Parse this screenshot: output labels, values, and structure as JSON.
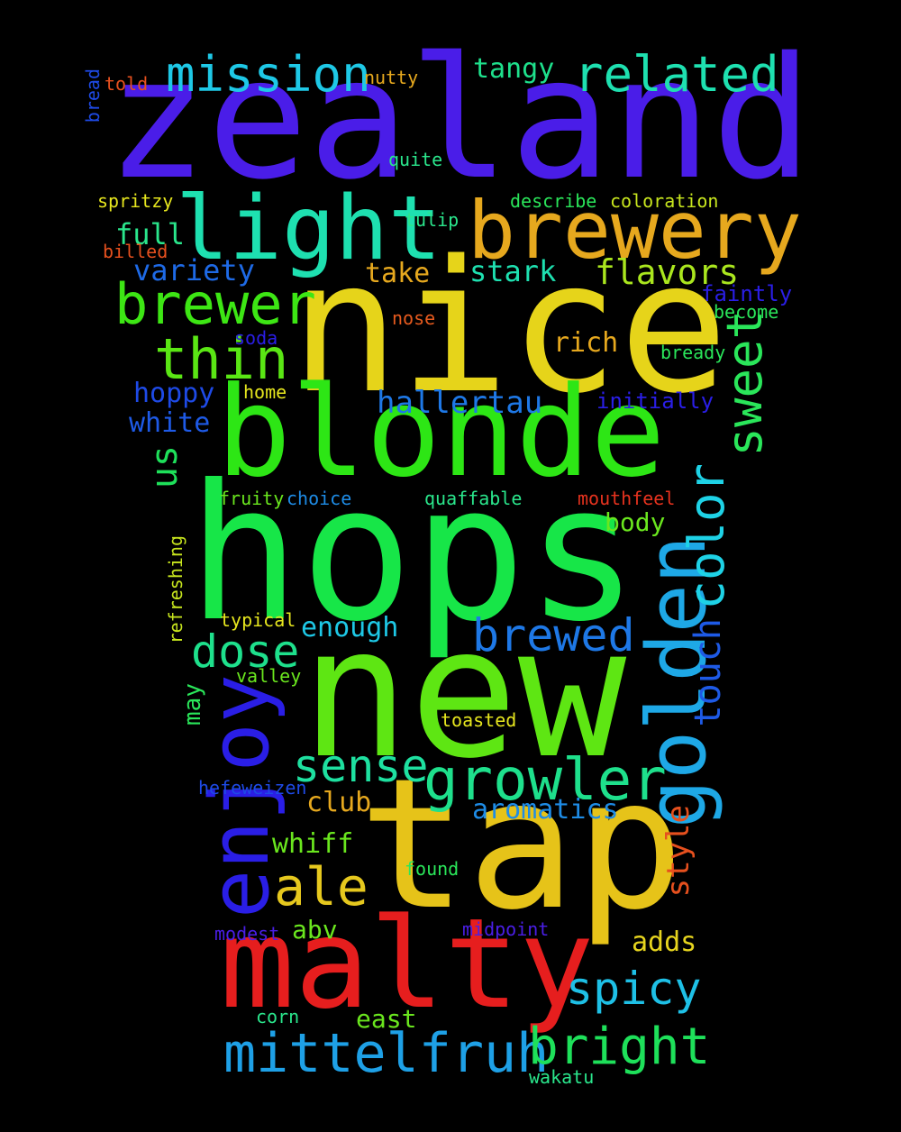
{
  "words": [
    {
      "text": "zealand",
      "color": "#4a1de8"
    },
    {
      "text": "nice",
      "color": "#e6d41a"
    },
    {
      "text": "hops",
      "color": "#17e648"
    },
    {
      "text": "new",
      "color": "#5ee613"
    },
    {
      "text": "tap",
      "color": "#e6c319"
    },
    {
      "text": "blonde",
      "color": "#2de615"
    },
    {
      "text": "malty",
      "color": "#e61e1e"
    },
    {
      "text": "light",
      "color": "#1ee0b0"
    },
    {
      "text": "brewery",
      "color": "#e6a81e"
    },
    {
      "text": "golden",
      "color": "#1ea8e6"
    },
    {
      "text": "enjoy",
      "color": "#2a1ee6"
    },
    {
      "text": "mittelfruh",
      "color": "#1ea0e6"
    },
    {
      "text": "growler",
      "color": "#1ee08c"
    },
    {
      "text": "bright",
      "color": "#1ee05a"
    },
    {
      "text": "brewer",
      "color": "#3de614"
    },
    {
      "text": "mission",
      "color": "#1ec8e6"
    },
    {
      "text": "related",
      "color": "#1ee0b0"
    },
    {
      "text": "thin",
      "color": "#5ae614"
    },
    {
      "text": "sweet",
      "color": "#2ae65a"
    },
    {
      "text": "color",
      "color": "#1ed2e6"
    },
    {
      "text": "brewed",
      "color": "#1e78e6"
    },
    {
      "text": "sense",
      "color": "#1ee0a0"
    },
    {
      "text": "dose",
      "color": "#1ee08c"
    },
    {
      "text": "ale",
      "color": "#e6c81e"
    },
    {
      "text": "spicy",
      "color": "#1ec0e6"
    },
    {
      "text": "touch",
      "color": "#1e5ae6"
    },
    {
      "text": "flavors",
      "color": "#aae61e"
    },
    {
      "text": "hallertau",
      "color": "#1e78e6"
    },
    {
      "text": "us",
      "color": "#1ee05a"
    },
    {
      "text": "style",
      "color": "#e6501e"
    },
    {
      "text": "stark",
      "color": "#1ee0b0"
    },
    {
      "text": "variety",
      "color": "#1e6ae6"
    },
    {
      "text": "full",
      "color": "#2ae68c"
    },
    {
      "text": "take",
      "color": "#e6a81e"
    },
    {
      "text": "rich",
      "color": "#e6a81e"
    },
    {
      "text": "hoppy",
      "color": "#1e4ae6"
    },
    {
      "text": "white",
      "color": "#1e5ae6"
    },
    {
      "text": "tangy",
      "color": "#1ee08c"
    },
    {
      "text": "enough",
      "color": "#1ec8e6"
    },
    {
      "text": "aromatics",
      "color": "#1e8ce6"
    },
    {
      "text": "club",
      "color": "#e6a81e"
    },
    {
      "text": "whiff",
      "color": "#6ae61e"
    },
    {
      "text": "adds",
      "color": "#e6d41e"
    },
    {
      "text": "body",
      "color": "#6ae61e"
    },
    {
      "text": "abv",
      "color": "#6ae61e"
    },
    {
      "text": "east",
      "color": "#6ae61e"
    },
    {
      "text": "may",
      "color": "#2ae65a"
    },
    {
      "text": "faintly",
      "color": "#2a1ee6"
    },
    {
      "text": "initially",
      "color": "#2a1ee6"
    },
    {
      "text": "refreshing",
      "color": "#c8e61e"
    },
    {
      "text": "bread",
      "color": "#1e4ae6"
    },
    {
      "text": "told",
      "color": "#e6501e"
    },
    {
      "text": "nutty",
      "color": "#e6a81e"
    },
    {
      "text": "quite",
      "color": "#2ae68c"
    },
    {
      "text": "spritzy",
      "color": "#e6e61e"
    },
    {
      "text": "describe",
      "color": "#2ae65a"
    },
    {
      "text": "coloration",
      "color": "#c8e61e"
    },
    {
      "text": "tulip",
      "color": "#2ae68c"
    },
    {
      "text": "billed",
      "color": "#e6501e"
    },
    {
      "text": "nose",
      "color": "#e65a1e"
    },
    {
      "text": "become",
      "color": "#2ae65a"
    },
    {
      "text": "soda",
      "color": "#2a1ee6"
    },
    {
      "text": "bready",
      "color": "#2ae65a"
    },
    {
      "text": "home",
      "color": "#e6e61e"
    },
    {
      "text": "fruity",
      "color": "#6ae61e"
    },
    {
      "text": "choice",
      "color": "#1e8ce6"
    },
    {
      "text": "quaffable",
      "color": "#2ae68c"
    },
    {
      "text": "mouthfeel",
      "color": "#e6321e"
    },
    {
      "text": "typical",
      "color": "#e6e61e"
    },
    {
      "text": "valley",
      "color": "#6ae61e"
    },
    {
      "text": "toasted",
      "color": "#e6e61e"
    },
    {
      "text": "hefeweizen",
      "color": "#1e4ae6"
    },
    {
      "text": "found",
      "color": "#2ae65a"
    },
    {
      "text": "modest",
      "color": "#4a1ee6"
    },
    {
      "text": "midpoint",
      "color": "#4a1ee6"
    },
    {
      "text": "corn",
      "color": "#2ae68c"
    },
    {
      "text": "wakatu",
      "color": "#2ae68c"
    }
  ]
}
